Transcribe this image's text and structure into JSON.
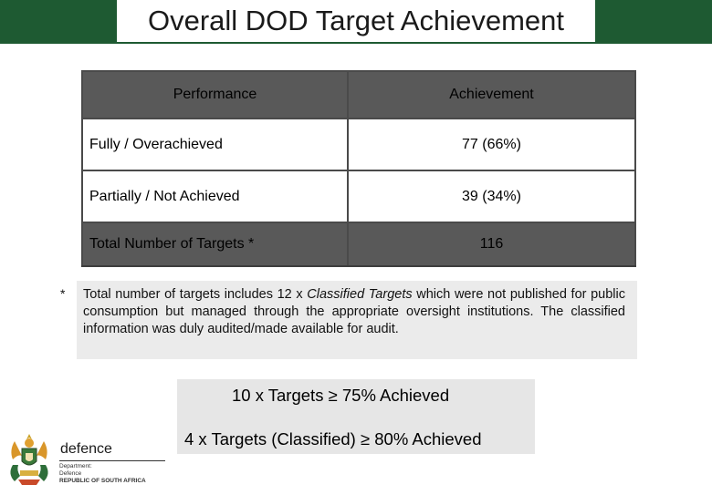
{
  "header": {
    "title": "Overall DOD Target Achievement"
  },
  "table": {
    "headers": [
      "Performance",
      "Achievement"
    ],
    "rows": [
      {
        "label": "Fully / Overachieved",
        "value": "77 (66%)"
      },
      {
        "label": "Partially / Not Achieved",
        "value": "39 (34%)"
      },
      {
        "label": "Total Number of Targets *",
        "value": "116"
      }
    ]
  },
  "footnote": {
    "marker": "*",
    "text_before": "Total number of targets includes 12 x ",
    "text_italic": "Classified Targets",
    "text_after": " which were not published for public consumption but managed through the appropriate oversight institutions. The classified information was duly audited/made available for audit."
  },
  "summary": {
    "line1": "10 x Targets ≥ 75% Achieved",
    "line2": "4 x Targets (Classified) ≥ 80% Achieved"
  },
  "logo": {
    "word": "defence",
    "dept_line1": "Department:",
    "dept_line2": "Defence",
    "dept_line3": "REPUBLIC OF SOUTH AFRICA"
  },
  "colors": {
    "title_bar": "#1e5a32",
    "table_header": "#595959",
    "footnote_bg": "#ebebeb",
    "summary_bg": "#e6e6e6"
  }
}
